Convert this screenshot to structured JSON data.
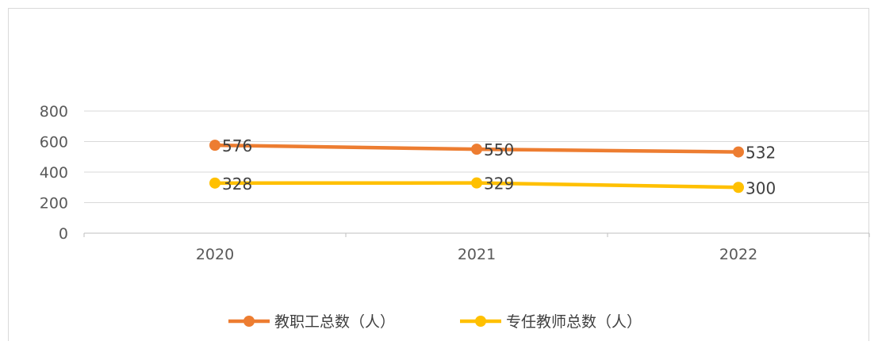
{
  "chart_data": {
    "type": "line",
    "title": "",
    "xlabel": "",
    "ylabel": "",
    "categories": [
      "2020",
      "2021",
      "2022"
    ],
    "ylim": [
      0,
      800
    ],
    "yticks": [
      "0",
      "200",
      "400",
      "600",
      "800"
    ],
    "grid": true,
    "legend_position": "bottom",
    "series": [
      {
        "name": "教职工总数（人）",
        "values": [
          576,
          550,
          532
        ],
        "color": "#ED7D31"
      },
      {
        "name": "专任教师总数（人）",
        "values": [
          328,
          329,
          300
        ],
        "color": "#FFC000"
      }
    ]
  }
}
